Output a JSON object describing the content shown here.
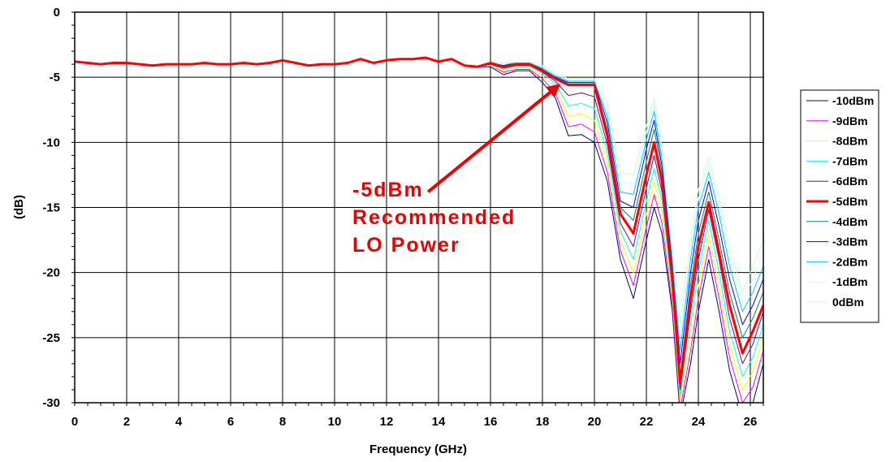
{
  "chart_data": {
    "type": "line",
    "title": "",
    "xlabel": "Frequency (GHz)",
    "ylabel": "(dB)",
    "xlim": [
      0,
      26.5
    ],
    "ylim": [
      -30,
      0
    ],
    "xticks": [
      0,
      2,
      4,
      6,
      8,
      10,
      12,
      14,
      16,
      18,
      20,
      22,
      24,
      26
    ],
    "yticks": [
      0,
      -5,
      -10,
      -15,
      -20,
      -25,
      -30
    ],
    "grid": true,
    "legend_position": "right",
    "annotation": {
      "lines": [
        "-5dBm",
        "Recommended",
        "LO Power"
      ],
      "arrow_from": [
        13.6,
        -13.8
      ],
      "arrow_to": [
        18.7,
        -5.5
      ],
      "color": "#ee0000"
    },
    "x": [
      0,
      0.5,
      1,
      1.5,
      2,
      2.5,
      3,
      3.5,
      4,
      4.5,
      5,
      5.5,
      6,
      6.5,
      7,
      7.5,
      8,
      8.5,
      9,
      9.5,
      10,
      10.5,
      11,
      11.5,
      12,
      12.5,
      13,
      13.5,
      14,
      14.5,
      15,
      15.5,
      16,
      16.5,
      17,
      17.5,
      18,
      18.5,
      19,
      19.5,
      20,
      20.5,
      21,
      21.5,
      22,
      22.3,
      22.6,
      23,
      23.3,
      23.7,
      24,
      24.4,
      24.8,
      25.2,
      25.7,
      26.1,
      26.5
    ],
    "series": [
      {
        "name": "-10dBm",
        "color": "#000080",
        "width": 1,
        "values": [
          -3.8,
          -3.9,
          -4.0,
          -3.9,
          -3.9,
          -4.0,
          -4.1,
          -4.0,
          -4.0,
          -4.0,
          -3.9,
          -4.0,
          -4.0,
          -3.9,
          -4.0,
          -3.9,
          -3.7,
          -3.9,
          -4.1,
          -4.0,
          -4.0,
          -3.9,
          -3.6,
          -3.9,
          -3.7,
          -3.6,
          -3.6,
          -3.5,
          -3.8,
          -3.6,
          -4.1,
          -4.2,
          -4.2,
          -4.8,
          -4.5,
          -4.5,
          -5.4,
          -6.6,
          -9.5,
          -9.4,
          -10.0,
          -13.0,
          -19.0,
          -22.0,
          -17.5,
          -15.0,
          -17.0,
          -23.0,
          -31.0,
          -27.0,
          -23.0,
          -19.0,
          -23.0,
          -27.5,
          -31.0,
          -30.0,
          -27.0
        ]
      },
      {
        "name": "-9dBm",
        "color": "#ff00ff",
        "width": 1,
        "values": [
          -3.8,
          -3.9,
          -4.0,
          -3.9,
          -3.9,
          -4.0,
          -4.1,
          -4.0,
          -4.0,
          -4.0,
          -3.9,
          -4.0,
          -4.0,
          -3.9,
          -4.0,
          -3.9,
          -3.7,
          -3.9,
          -4.1,
          -4.0,
          -4.0,
          -3.9,
          -3.6,
          -3.9,
          -3.7,
          -3.6,
          -3.6,
          -3.5,
          -3.8,
          -3.6,
          -4.1,
          -4.2,
          -4.1,
          -4.6,
          -4.4,
          -4.4,
          -5.1,
          -6.2,
          -8.8,
          -8.6,
          -9.2,
          -12.3,
          -18.3,
          -21.0,
          -16.5,
          -14.0,
          -16.2,
          -22.5,
          -30.5,
          -26.0,
          -22.0,
          -18.0,
          -22.0,
          -26.5,
          -30.0,
          -28.8,
          -26.0
        ]
      },
      {
        "name": "-8dBm",
        "color": "#ffff00",
        "width": 1,
        "values": [
          -3.8,
          -3.9,
          -4.0,
          -3.9,
          -3.9,
          -4.0,
          -4.1,
          -4.0,
          -4.0,
          -4.0,
          -3.9,
          -4.0,
          -4.0,
          -3.9,
          -4.0,
          -3.9,
          -3.7,
          -3.9,
          -4.1,
          -4.0,
          -4.0,
          -3.9,
          -3.6,
          -3.9,
          -3.7,
          -3.6,
          -3.6,
          -3.5,
          -3.8,
          -3.6,
          -4.1,
          -4.2,
          -4.1,
          -4.5,
          -4.3,
          -4.3,
          -4.9,
          -5.8,
          -8.0,
          -7.8,
          -8.3,
          -11.5,
          -17.5,
          -20.0,
          -15.5,
          -13.0,
          -15.3,
          -22.0,
          -30.0,
          -25.0,
          -21.0,
          -17.0,
          -21.0,
          -25.5,
          -29.0,
          -27.6,
          -25.0
        ]
      },
      {
        "name": "-7dBm",
        "color": "#00ffff",
        "width": 1,
        "values": [
          -3.8,
          -3.9,
          -4.0,
          -3.9,
          -3.9,
          -4.0,
          -4.1,
          -4.0,
          -4.0,
          -4.0,
          -3.9,
          -4.0,
          -4.0,
          -3.9,
          -4.0,
          -3.9,
          -3.7,
          -3.9,
          -4.1,
          -4.0,
          -4.0,
          -3.9,
          -3.6,
          -3.9,
          -3.7,
          -3.6,
          -3.6,
          -3.5,
          -3.8,
          -3.6,
          -4.1,
          -4.2,
          -4.0,
          -4.4,
          -4.2,
          -4.2,
          -4.7,
          -5.5,
          -7.2,
          -7.0,
          -7.4,
          -10.8,
          -16.8,
          -19.0,
          -14.5,
          -12.0,
          -14.5,
          -21.5,
          -29.5,
          -24.0,
          -20.0,
          -16.0,
          -20.0,
          -24.5,
          -28.0,
          -26.5,
          -24.0
        ]
      },
      {
        "name": "-6dBm",
        "color": "#800080",
        "width": 1,
        "values": [
          -3.8,
          -3.9,
          -4.0,
          -3.9,
          -3.9,
          -4.0,
          -4.1,
          -4.0,
          -4.0,
          -4.0,
          -3.9,
          -4.0,
          -4.0,
          -3.9,
          -4.0,
          -3.9,
          -3.7,
          -3.9,
          -4.1,
          -4.0,
          -4.0,
          -3.9,
          -3.6,
          -3.9,
          -3.7,
          -3.6,
          -3.6,
          -3.5,
          -3.8,
          -3.6,
          -4.1,
          -4.2,
          -4.0,
          -4.3,
          -4.1,
          -4.1,
          -4.6,
          -5.3,
          -6.4,
          -6.2,
          -6.5,
          -10.2,
          -16.2,
          -18.0,
          -13.5,
          -11.0,
          -13.8,
          -21.0,
          -29.0,
          -23.0,
          -19.0,
          -15.2,
          -19.0,
          -23.5,
          -27.0,
          -25.5,
          -23.0
        ]
      },
      {
        "name": "-5dBm",
        "color": "#ff0000",
        "width": 3,
        "values": [
          -3.8,
          -3.9,
          -4.0,
          -3.9,
          -3.9,
          -4.0,
          -4.1,
          -4.0,
          -4.0,
          -4.0,
          -3.9,
          -4.0,
          -4.0,
          -3.9,
          -4.0,
          -3.9,
          -3.7,
          -3.9,
          -4.1,
          -4.0,
          -4.0,
          -3.9,
          -3.6,
          -3.9,
          -3.7,
          -3.6,
          -3.6,
          -3.5,
          -3.8,
          -3.6,
          -4.1,
          -4.2,
          -3.9,
          -4.2,
          -4.0,
          -4.0,
          -4.5,
          -5.1,
          -5.6,
          -5.6,
          -5.6,
          -9.5,
          -15.5,
          -17.0,
          -12.5,
          -10.0,
          -13.0,
          -20.5,
          -28.5,
          -22.0,
          -18.0,
          -14.6,
          -18.5,
          -22.5,
          -26.2,
          -24.5,
          -22.5
        ]
      },
      {
        "name": "-4dBm",
        "color": "#008080",
        "width": 1,
        "values": [
          -3.8,
          -3.9,
          -4.0,
          -3.9,
          -3.9,
          -4.0,
          -4.1,
          -4.0,
          -4.0,
          -4.0,
          -3.9,
          -4.0,
          -4.0,
          -3.9,
          -4.0,
          -3.9,
          -3.7,
          -3.9,
          -4.1,
          -4.0,
          -4.0,
          -3.9,
          -3.6,
          -3.9,
          -3.7,
          -3.6,
          -3.6,
          -3.5,
          -3.8,
          -3.6,
          -4.1,
          -4.2,
          -3.9,
          -4.1,
          -4.0,
          -4.0,
          -4.4,
          -5.0,
          -5.5,
          -5.5,
          -5.5,
          -9.0,
          -15.0,
          -16.0,
          -11.5,
          -9.0,
          -12.3,
          -20.0,
          -28.0,
          -21.0,
          -17.0,
          -13.8,
          -17.5,
          -21.5,
          -25.0,
          -23.5,
          -21.5
        ]
      },
      {
        "name": "-3dBm",
        "color": "#0000ff",
        "width": 1,
        "values": [
          -3.8,
          -3.9,
          -4.0,
          -3.9,
          -3.9,
          -4.0,
          -4.1,
          -4.0,
          -4.0,
          -4.0,
          -3.9,
          -4.0,
          -4.0,
          -3.9,
          -4.0,
          -3.9,
          -3.7,
          -3.9,
          -4.1,
          -4.0,
          -4.0,
          -3.9,
          -3.6,
          -3.9,
          -3.7,
          -3.6,
          -3.6,
          -3.5,
          -3.8,
          -3.6,
          -4.1,
          -4.2,
          -3.9,
          -4.1,
          -3.9,
          -3.9,
          -4.4,
          -5.0,
          -5.4,
          -5.4,
          -5.4,
          -8.5,
          -14.5,
          -15.0,
          -10.5,
          -8.3,
          -11.8,
          -19.5,
          -27.0,
          -20.0,
          -16.0,
          -13.0,
          -16.5,
          -20.5,
          -24.0,
          -22.5,
          -20.5
        ]
      },
      {
        "name": "-2dBm",
        "color": "#00ccff",
        "width": 1,
        "values": [
          -3.8,
          -3.9,
          -4.0,
          -3.9,
          -3.9,
          -4.0,
          -4.1,
          -4.0,
          -4.0,
          -4.0,
          -3.9,
          -4.0,
          -4.0,
          -3.9,
          -4.0,
          -3.9,
          -3.7,
          -3.9,
          -4.1,
          -4.0,
          -4.0,
          -3.9,
          -3.6,
          -3.9,
          -3.7,
          -3.6,
          -3.6,
          -3.5,
          -3.8,
          -3.6,
          -4.1,
          -4.2,
          -3.9,
          -4.0,
          -3.9,
          -3.9,
          -4.3,
          -4.9,
          -5.3,
          -5.3,
          -5.3,
          -8.0,
          -13.8,
          -14.0,
          -9.8,
          -7.6,
          -11.2,
          -19.0,
          -26.0,
          -19.0,
          -15.0,
          -12.3,
          -15.5,
          -19.5,
          -23.0,
          -21.5,
          -19.5
        ]
      },
      {
        "name": "-1dBm",
        "color": "#ccffff",
        "width": 1,
        "values": [
          -3.8,
          -3.9,
          -4.0,
          -3.9,
          -3.9,
          -4.0,
          -4.1,
          -4.0,
          -4.0,
          -4.0,
          -3.9,
          -4.0,
          -4.0,
          -3.9,
          -4.0,
          -3.9,
          -3.7,
          -3.9,
          -4.1,
          -4.0,
          -4.0,
          -3.9,
          -3.6,
          -3.9,
          -3.7,
          -3.6,
          -3.6,
          -3.5,
          -3.8,
          -3.6,
          -4.1,
          -4.2,
          -3.9,
          -4.0,
          -3.8,
          -3.8,
          -4.2,
          -4.8,
          -5.2,
          -5.2,
          -5.2,
          -7.5,
          -13.0,
          -13.2,
          -9.2,
          -7.0,
          -10.8,
          -18.5,
          -25.0,
          -18.2,
          -14.3,
          -11.7,
          -14.8,
          -18.8,
          -22.2,
          -20.5,
          -18.5
        ]
      },
      {
        "name": "0dBm",
        "color": "#ccffcc",
        "width": 1,
        "values": [
          -3.8,
          -3.9,
          -4.0,
          -3.9,
          -3.9,
          -4.0,
          -4.1,
          -4.0,
          -4.0,
          -4.0,
          -3.9,
          -4.0,
          -4.0,
          -3.9,
          -4.0,
          -3.9,
          -3.7,
          -3.9,
          -4.1,
          -4.0,
          -4.0,
          -3.9,
          -3.6,
          -3.9,
          -3.7,
          -3.6,
          -3.6,
          -3.5,
          -3.8,
          -3.6,
          -4.1,
          -4.2,
          -3.9,
          -3.9,
          -3.8,
          -3.8,
          -4.1,
          -4.7,
          -5.1,
          -5.1,
          -5.1,
          -7.0,
          -12.3,
          -12.5,
          -8.7,
          -6.6,
          -10.4,
          -18.0,
          -24.0,
          -17.5,
          -13.6,
          -11.2,
          -14.2,
          -18.0,
          -21.5,
          -19.5,
          -17.5
        ]
      }
    ]
  }
}
